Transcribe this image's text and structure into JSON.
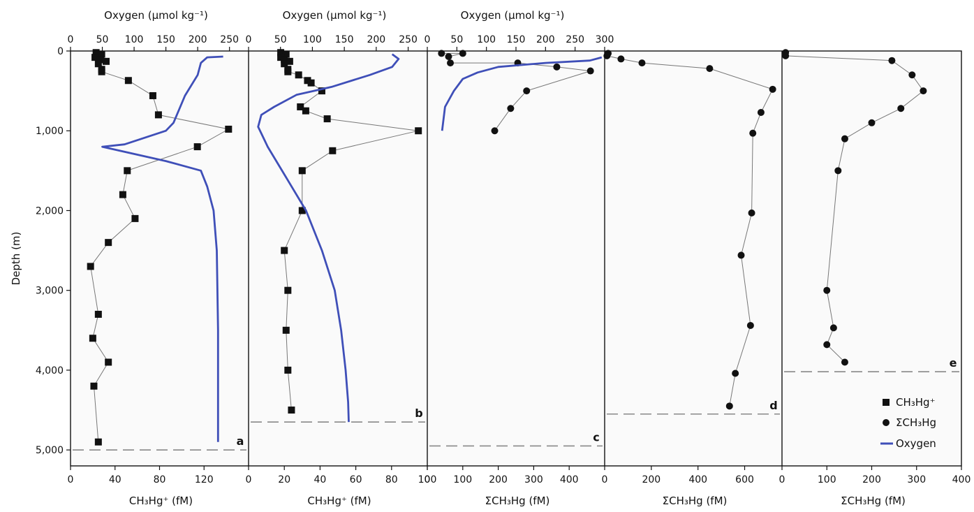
{
  "figure": {
    "ylabel": "Depth (m)",
    "y_ticks": [
      "0",
      "1,000",
      "2,000",
      "3,000",
      "4,000",
      "5,000"
    ],
    "legend": [
      {
        "label": "CH₃Hg⁺",
        "marker": "square"
      },
      {
        "label": "ΣCH₃Hg",
        "marker": "circle"
      },
      {
        "label": "Oxygen",
        "marker": "line"
      }
    ]
  },
  "colors": {
    "oxygen": "#3f4fb8",
    "points": "#111111",
    "connector": "#777777",
    "floor": "#888888",
    "background": "#fafafa"
  },
  "chart_data": [
    {
      "type": "line",
      "panel": "a",
      "xlabel": "CH₃Hg⁺ (fM)",
      "xlim": [
        0,
        160
      ],
      "x_ticks": [
        "0",
        "40",
        "80",
        "120"
      ],
      "top_label": "Oxygen (µmol kg⁻¹)",
      "top_xlim": [
        0,
        280
      ],
      "top_ticks": [
        "0",
        "50",
        "100",
        "150",
        "200",
        "250"
      ],
      "ylim": [
        0,
        5200
      ],
      "y_reversed": true,
      "floor_depth": 5000,
      "series": [
        {
          "name": "CH₃Hg⁺",
          "marker": "square",
          "points": [
            [
              23,
              20
            ],
            [
              28,
              40
            ],
            [
              22,
              80
            ],
            [
              27,
              110
            ],
            [
              32,
              130
            ],
            [
              25,
              160
            ],
            [
              28,
              230
            ],
            [
              28,
              260
            ],
            [
              52,
              370
            ],
            [
              74,
              560
            ],
            [
              79,
              800
            ],
            [
              142,
              980
            ],
            [
              114,
              1200
            ],
            [
              51,
              1500
            ],
            [
              47,
              1800
            ],
            [
              58,
              2100
            ],
            [
              34,
              2400
            ],
            [
              18,
              2700
            ],
            [
              25,
              3300
            ],
            [
              20,
              3600
            ],
            [
              34,
              3900
            ],
            [
              21,
              4200
            ],
            [
              25,
              4900
            ]
          ]
        },
        {
          "name": "Oxygen",
          "marker": "line",
          "points": [
            [
              240,
              70
            ],
            [
              215,
              80
            ],
            [
              205,
              150
            ],
            [
              200,
              300
            ],
            [
              180,
              560
            ],
            [
              162,
              900
            ],
            [
              150,
              1000
            ],
            [
              85,
              1170
            ],
            [
              50,
              1200
            ],
            [
              150,
              1380
            ],
            [
              205,
              1500
            ],
            [
              215,
              1700
            ],
            [
              225,
              2000
            ],
            [
              230,
              2500
            ],
            [
              232,
              3500
            ],
            [
              232,
              4900
            ]
          ]
        }
      ]
    },
    {
      "type": "line",
      "panel": "b",
      "xlabel": "CH₃Hg⁺ (fM)",
      "xlim": [
        0,
        100
      ],
      "x_ticks": [
        "0",
        "20",
        "40",
        "60",
        "80",
        "100"
      ],
      "top_label": "Oxygen (µmol kg⁻¹)",
      "top_xlim": [
        0,
        280
      ],
      "top_ticks": [
        "0",
        "50",
        "100",
        "150",
        "200",
        "250"
      ],
      "ylim": [
        0,
        5200
      ],
      "y_reversed": true,
      "floor_depth": 4650,
      "series": [
        {
          "name": "CH₃Hg⁺",
          "marker": "square",
          "points": [
            [
              18,
              20
            ],
            [
              21,
              40
            ],
            [
              18,
              80
            ],
            [
              20,
              110
            ],
            [
              23,
              130
            ],
            [
              20,
              160
            ],
            [
              22,
              230
            ],
            [
              22,
              260
            ],
            [
              28,
              300
            ],
            [
              33,
              370
            ],
            [
              35,
              400
            ],
            [
              41,
              500
            ],
            [
              29,
              700
            ],
            [
              32,
              750
            ],
            [
              44,
              850
            ],
            [
              95,
              1000
            ],
            [
              47,
              1250
            ],
            [
              30,
              1500
            ],
            [
              30,
              2000
            ],
            [
              20,
              2500
            ],
            [
              22,
              3000
            ],
            [
              21,
              3500
            ],
            [
              22,
              4000
            ],
            [
              24,
              4500
            ]
          ]
        },
        {
          "name": "Oxygen",
          "marker": "line",
          "points": [
            [
              225,
              40
            ],
            [
              235,
              100
            ],
            [
              225,
              200
            ],
            [
              190,
              300
            ],
            [
              130,
              450
            ],
            [
              75,
              550
            ],
            [
              40,
              700
            ],
            [
              20,
              800
            ],
            [
              15,
              950
            ],
            [
              30,
              1200
            ],
            [
              60,
              1600
            ],
            [
              90,
              2000
            ],
            [
              115,
              2500
            ],
            [
              135,
              3000
            ],
            [
              145,
              3500
            ],
            [
              152,
              4000
            ],
            [
              156,
              4400
            ],
            [
              157,
              4650
            ]
          ]
        }
      ]
    },
    {
      "type": "line",
      "panel": "c",
      "xlabel": "ΣCH₃Hg (fM)",
      "xlim": [
        0,
        500
      ],
      "x_ticks": [
        "0",
        "100",
        "200",
        "300",
        "400"
      ],
      "top_label": "Oxygen (µmol kg⁻¹)",
      "top_xlim": [
        0,
        300
      ],
      "top_ticks": [
        "0",
        "50",
        "100",
        "150",
        "200",
        "250",
        "300"
      ],
      "ylim": [
        0,
        5200
      ],
      "y_reversed": true,
      "floor_depth": 4950,
      "series": [
        {
          "name": "ΣCH₃Hg",
          "marker": "circle",
          "points": [
            [
              40,
              30
            ],
            [
              100,
              30
            ],
            [
              60,
              70
            ],
            [
              65,
              150
            ],
            [
              255,
              150
            ],
            [
              365,
              200
            ],
            [
              460,
              250
            ],
            [
              280,
              500
            ],
            [
              235,
              720
            ],
            [
              190,
              1000
            ]
          ]
        },
        {
          "name": "Oxygen",
          "marker": "line",
          "points": [
            [
              295,
              80
            ],
            [
              275,
              120
            ],
            [
              200,
              150
            ],
            [
              120,
              200
            ],
            [
              85,
              270
            ],
            [
              60,
              350
            ],
            [
              45,
              500
            ],
            [
              30,
              700
            ],
            [
              25,
              1000
            ]
          ]
        }
      ]
    },
    {
      "type": "line",
      "panel": "d",
      "xlabel": "ΣCH₃Hg (fM)",
      "xlim": [
        0,
        760
      ],
      "x_ticks": [
        "0",
        "200",
        "400",
        "600"
      ],
      "ylim": [
        0,
        5200
      ],
      "y_reversed": true,
      "floor_depth": 4550,
      "series": [
        {
          "name": "ΣCH₃Hg",
          "marker": "circle",
          "points": [
            [
              15,
              30
            ],
            [
              10,
              60
            ],
            [
              70,
              100
            ],
            [
              160,
              150
            ],
            [
              450,
              220
            ],
            [
              720,
              480
            ],
            [
              670,
              770
            ],
            [
              635,
              1030
            ],
            [
              630,
              2030
            ],
            [
              585,
              2560
            ],
            [
              625,
              3440
            ],
            [
              560,
              4040
            ],
            [
              535,
              4450
            ]
          ]
        }
      ]
    },
    {
      "type": "line",
      "panel": "e",
      "xlabel": "ΣCH₃Hg (fM)",
      "xlim": [
        0,
        400
      ],
      "x_ticks": [
        "0",
        "100",
        "200",
        "300",
        "400"
      ],
      "ylim": [
        0,
        5200
      ],
      "y_reversed": true,
      "floor_depth": 4020,
      "series": [
        {
          "name": "ΣCH₃Hg",
          "marker": "circle",
          "points": [
            [
              8,
              20
            ],
            [
              8,
              60
            ],
            [
              245,
              120
            ],
            [
              290,
              300
            ],
            [
              315,
              500
            ],
            [
              265,
              720
            ],
            [
              200,
              900
            ],
            [
              140,
              1100
            ],
            [
              125,
              1500
            ],
            [
              100,
              3000
            ],
            [
              115,
              3470
            ],
            [
              100,
              3680
            ],
            [
              140,
              3900
            ]
          ]
        }
      ]
    }
  ]
}
